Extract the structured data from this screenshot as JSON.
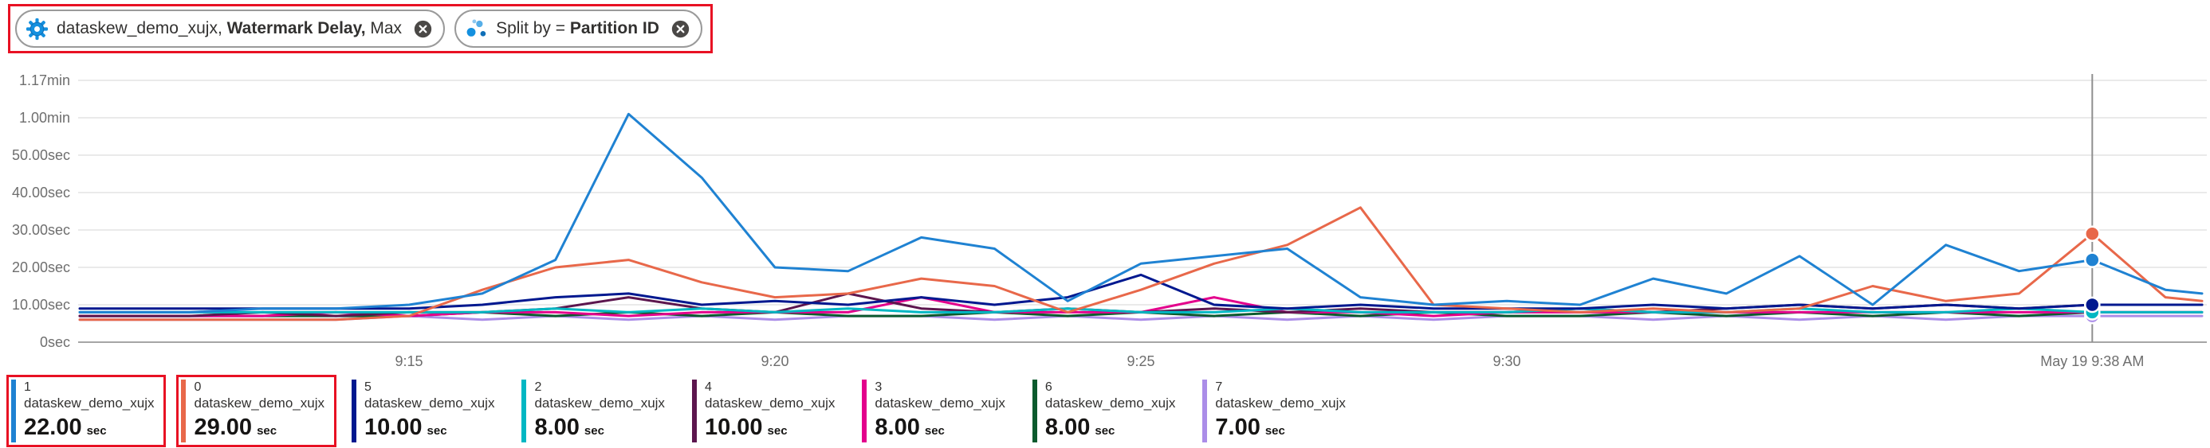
{
  "pills": {
    "metric_pill": {
      "icon": "stream-analytics-gear-icon",
      "segments": [
        {
          "text": "dataskew_demo_xujx, ",
          "bold": false
        },
        {
          "text": "Watermark Delay,",
          "bold": true
        },
        {
          "text": " Max",
          "bold": false
        }
      ],
      "close_icon": "circle-x-icon"
    },
    "split_pill": {
      "icon": "scatter-dots-icon",
      "segments": [
        {
          "text": "Split by = ",
          "bold": false
        },
        {
          "text": "Partition ID",
          "bold": true
        }
      ],
      "close_icon": "circle-x-icon"
    }
  },
  "chart_data": {
    "type": "line",
    "grid": "horizontal",
    "legend_position": "bottom",
    "x_axis": "time",
    "x_min": 10.5,
    "x_max": 39.5,
    "y_min": 0,
    "y_max": 70,
    "y_ticks": [
      {
        "label": "1.17min",
        "value": 70
      },
      {
        "label": "1.00min",
        "value": 60
      },
      {
        "label": "50.00sec",
        "value": 50
      },
      {
        "label": "40.00sec",
        "value": 40
      },
      {
        "label": "30.00sec",
        "value": 30
      },
      {
        "label": "20.00sec",
        "value": 20
      },
      {
        "label": "10.00sec",
        "value": 10
      },
      {
        "label": "0sec",
        "value": 0
      }
    ],
    "x_ticks": [
      {
        "label": "9:15",
        "value": 15
      },
      {
        "label": "9:20",
        "value": 20
      },
      {
        "label": "9:25",
        "value": 25
      },
      {
        "label": "9:30",
        "value": 30
      }
    ],
    "x_minutes": [
      10.5,
      11,
      12,
      13,
      14,
      15,
      16,
      17,
      18,
      19,
      20,
      21,
      22,
      23,
      24,
      25,
      26,
      27,
      28,
      29,
      30,
      31,
      32,
      33,
      34,
      35,
      36,
      37,
      38,
      39,
      39.5
    ],
    "series": [
      {
        "partition": "1",
        "name": "dataskew_demo_xujx",
        "color": "#1f82d2",
        "values": [
          8,
          8,
          8,
          9,
          9,
          10,
          13,
          22,
          61,
          44,
          20,
          19,
          28,
          25,
          11,
          21,
          23,
          25,
          12,
          10,
          11,
          10,
          17,
          13,
          23,
          10,
          26,
          19,
          22,
          14,
          13
        ]
      },
      {
        "partition": "0",
        "name": "dataskew_demo_xujx",
        "color": "#e8684a",
        "values": [
          6,
          6,
          6,
          6,
          6,
          7,
          14,
          20,
          22,
          16,
          12,
          13,
          17,
          15,
          8,
          14,
          21,
          26,
          36,
          10,
          9,
          8,
          9,
          8,
          9,
          15,
          11,
          13,
          29,
          12,
          11
        ]
      },
      {
        "partition": "5",
        "name": "dataskew_demo_xujx",
        "color": "#00188f",
        "values": [
          9,
          9,
          9,
          9,
          9,
          9,
          10,
          12,
          13,
          10,
          11,
          10,
          12,
          10,
          12,
          18,
          10,
          9,
          10,
          9,
          9,
          9,
          10,
          9,
          10,
          9,
          10,
          9,
          10,
          10,
          10
        ]
      },
      {
        "partition": "2",
        "name": "dataskew_demo_xujx",
        "color": "#00b7c3",
        "values": [
          8,
          8,
          8,
          8,
          8,
          8,
          8,
          9,
          8,
          9,
          8,
          9,
          8,
          8,
          9,
          8,
          8,
          9,
          8,
          8,
          8,
          9,
          8,
          8,
          9,
          8,
          8,
          9,
          8,
          8,
          8
        ]
      },
      {
        "partition": "4",
        "name": "dataskew_demo_xujx",
        "color": "#5c164e",
        "values": [
          7,
          7,
          7,
          8,
          7,
          8,
          8,
          9,
          12,
          9,
          8,
          13,
          9,
          8,
          9,
          8,
          9,
          8,
          9,
          8,
          8,
          9,
          8,
          9,
          10,
          9,
          10,
          9,
          10,
          10,
          10
        ]
      },
      {
        "partition": "3",
        "name": "dataskew_demo_xujx",
        "color": "#e3008c",
        "values": [
          7,
          7,
          7,
          7,
          8,
          7,
          8,
          8,
          7,
          8,
          8,
          8,
          12,
          8,
          8,
          8,
          12,
          8,
          8,
          7,
          8,
          8,
          8,
          8,
          8,
          8,
          8,
          8,
          8,
          8,
          8
        ]
      },
      {
        "partition": "6",
        "name": "dataskew_demo_xujx",
        "color": "#0b5a2d",
        "values": [
          7,
          7,
          7,
          7,
          7,
          7,
          8,
          7,
          8,
          7,
          8,
          7,
          7,
          8,
          7,
          8,
          7,
          8,
          7,
          8,
          7,
          7,
          8,
          7,
          8,
          7,
          8,
          7,
          8,
          8,
          8
        ]
      },
      {
        "partition": "7",
        "name": "dataskew_demo_xujx",
        "color": "#ab8de8",
        "values": [
          6,
          6,
          6,
          6,
          6,
          7,
          6,
          7,
          6,
          7,
          6,
          7,
          7,
          6,
          7,
          6,
          7,
          6,
          7,
          6,
          7,
          7,
          6,
          7,
          6,
          7,
          6,
          7,
          7,
          7,
          7
        ]
      }
    ],
    "crosshair": {
      "x_value": 38,
      "label": "May 19 9:38 AM"
    }
  },
  "legend": {
    "items": [
      {
        "partition": "1",
        "name": "dataskew_demo_xujx",
        "value": "22.00",
        "unit": "sec",
        "highlighted": true
      },
      {
        "partition": "0",
        "name": "dataskew_demo_xujx",
        "value": "29.00",
        "unit": "sec",
        "highlighted": true
      },
      {
        "partition": "5",
        "name": "dataskew_demo_xujx",
        "value": "10.00",
        "unit": "sec",
        "highlighted": false
      },
      {
        "partition": "2",
        "name": "dataskew_demo_xujx",
        "value": "8.00",
        "unit": "sec",
        "highlighted": false
      },
      {
        "partition": "4",
        "name": "dataskew_demo_xujx",
        "value": "10.00",
        "unit": "sec",
        "highlighted": false
      },
      {
        "partition": "3",
        "name": "dataskew_demo_xujx",
        "value": "8.00",
        "unit": "sec",
        "highlighted": false
      },
      {
        "partition": "6",
        "name": "dataskew_demo_xujx",
        "value": "8.00",
        "unit": "sec",
        "highlighted": false
      },
      {
        "partition": "7",
        "name": "dataskew_demo_xujx",
        "value": "7.00",
        "unit": "sec",
        "highlighted": false
      }
    ]
  },
  "colors": {
    "annotation": "#e81123",
    "grid": "#e3e3e3",
    "axis_line": "#a6a6a6",
    "axis_text": "#6e6e6e",
    "crosshair": "#8f8f8f",
    "pill_icon_blue": "#1490df",
    "pill_icon_blue_dark": "#0f6fb8",
    "close_icon_gray": "#4a4846"
  }
}
